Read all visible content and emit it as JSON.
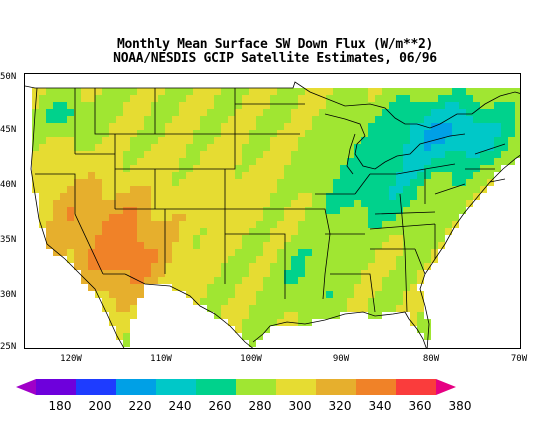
{
  "title": {
    "line1": "Monthly Mean Surface SW Down Flux (W/m**2)",
    "line2": "NOAA/NESDIS GCIP Satellite Estimates, 06/96"
  },
  "map": {
    "lat_ticks": [
      "50N",
      "45N",
      "40N",
      "35N",
      "30N",
      "25N"
    ],
    "lon_ticks": [
      "120W",
      "110W",
      "100W",
      "90W",
      "80W",
      "70W"
    ],
    "ocean_color": "#ffffff",
    "line_color": "#000000"
  },
  "colorbar": {
    "labels": [
      "180",
      "200",
      "220",
      "240",
      "260",
      "280",
      "300",
      "320",
      "340",
      "360",
      "380"
    ],
    "colors": [
      "#a000c8",
      "#6e00dc",
      "#1e3cff",
      "#00a0e6",
      "#00c8c8",
      "#00d28c",
      "#a0e632",
      "#e6dc32",
      "#e6af2d",
      "#f08228",
      "#fa3c3c",
      "#e60082"
    ]
  }
}
